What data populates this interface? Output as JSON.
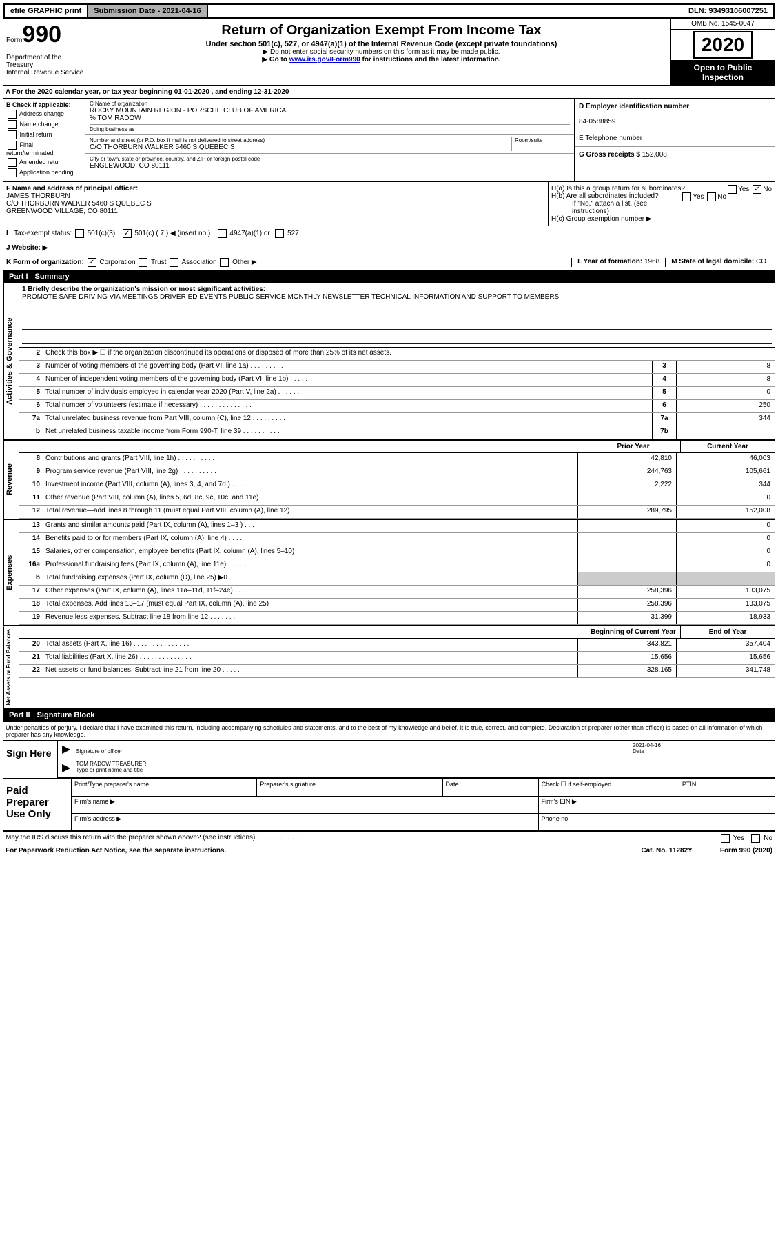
{
  "topbar": {
    "efile": "efile GRAPHIC print",
    "subdate_label": "Submission Date - 2021-04-16",
    "dln": "DLN: 93493106007251"
  },
  "header": {
    "form_word": "Form",
    "form_num": "990",
    "dept": "Department of the Treasury\nInternal Revenue Service",
    "title": "Return of Organization Exempt From Income Tax",
    "sub": "Under section 501(c), 527, or 4947(a)(1) of the Internal Revenue Code (except private foundations)",
    "note1": "▶ Do not enter social security numbers on this form as it may be made public.",
    "note2_pre": "▶ Go to ",
    "note2_link": "www.irs.gov/Form990",
    "note2_post": " for instructions and the latest information.",
    "omb": "OMB No. 1545-0047",
    "year": "2020",
    "public1": "Open to Public",
    "public2": "Inspection"
  },
  "line_a": "A For the 2020 calendar year, or tax year beginning 01-01-2020    , and ending 12-31-2020",
  "box_b": {
    "title": "B Check if applicable:",
    "items": [
      "Address change",
      "Name change",
      "Initial return",
      "Final return/terminated",
      "Amended return",
      "Application pending"
    ]
  },
  "box_c": {
    "name_lbl": "C Name of organization",
    "name": "ROCKY MOUNTAIN REGION - PORSCHE CLUB OF AMERICA",
    "care_of": "% TOM RADOW",
    "dba_lbl": "Doing business as",
    "addr_lbl": "Number and street (or P.O. box if mail is not delivered to street address)",
    "room_lbl": "Room/suite",
    "addr": "C/O THORBURN WALKER 5460 S QUEBEC S",
    "city_lbl": "City or town, state or province, country, and ZIP or foreign postal code",
    "city": "ENGLEWOOD, CO  80111"
  },
  "box_d": {
    "lbl": "D Employer identification number",
    "val": "84-0588859"
  },
  "box_e": {
    "lbl": "E Telephone number"
  },
  "box_g": {
    "lbl": "G Gross receipts $",
    "val": "152,008"
  },
  "box_f": {
    "lbl": "F Name and address of principal officer:",
    "name": "JAMES THORBURN",
    "addr1": "C/O THORBURN WALKER 5460 S QUEBEC S",
    "addr2": "GREENWOOD VILLAGE, CO  80111"
  },
  "box_h": {
    "a_lbl": "H(a)  Is this a group return for subordinates?",
    "a_yes": "Yes",
    "a_no": "No",
    "b_lbl": "H(b)  Are all subordinates included?",
    "b_yes": "Yes",
    "b_no": "No",
    "b_note": "If \"No,\" attach a list. (see instructions)",
    "c_lbl": "H(c)  Group exemption number ▶"
  },
  "tax_status": {
    "lbl": "Tax-exempt status:",
    "c3": "501(c)(3)",
    "c7": "501(c) ( 7 ) ◀ (insert no.)",
    "a1": "4947(a)(1) or",
    "s527": "527"
  },
  "website": {
    "lbl": "J   Website: ▶"
  },
  "kform": {
    "lbl": "K Form of organization:",
    "corp": "Corporation",
    "trust": "Trust",
    "assoc": "Association",
    "other": "Other ▶",
    "l_lbl": "L Year of formation:",
    "l_val": "1968",
    "m_lbl": "M State of legal domicile:",
    "m_val": "CO"
  },
  "part1": {
    "num": "Part I",
    "title": "Summary"
  },
  "governance": {
    "label": "Activities & Governance",
    "q1_lbl": "1  Briefly describe the organization's mission or most significant activities:",
    "q1_text": "PROMOTE SAFE DRIVING VIA MEETINGS DRIVER ED EVENTS PUBLIC SERVICE MONTHLY NEWSLETTER TECHNICAL INFORMATION AND SUPPORT TO MEMBERS",
    "q2": "Check this box ▶ ☐  if the organization discontinued its operations or disposed of more than 25% of its net assets.",
    "rows": [
      {
        "n": "3",
        "d": "Number of voting members of the governing body (Part VI, line 1a)  .   .   .   .   .   .   .   .   .",
        "bn": "3",
        "v": "8"
      },
      {
        "n": "4",
        "d": "Number of independent voting members of the governing body (Part VI, line 1b)   .   .   .   .   .",
        "bn": "4",
        "v": "8"
      },
      {
        "n": "5",
        "d": "Total number of individuals employed in calendar year 2020 (Part V, line 2a)   .   .   .   .   .   .",
        "bn": "5",
        "v": "0"
      },
      {
        "n": "6",
        "d": "Total number of volunteers (estimate if necessary)   .   .   .   .   .   .   .   .   .   .   .   .   .   .",
        "bn": "6",
        "v": "250"
      },
      {
        "n": "7a",
        "d": "Total unrelated business revenue from Part VIII, column (C), line 12   .   .   .   .   .   .   .   .   .",
        "bn": "7a",
        "v": "344"
      },
      {
        "n": "b",
        "d": "Net unrelated business taxable income from Form 990-T, line 39   .   .   .   .   .   .   .   .   .   .",
        "bn": "7b",
        "v": ""
      }
    ]
  },
  "revenue": {
    "label": "Revenue",
    "prior_hdr": "Prior Year",
    "curr_hdr": "Current Year",
    "rows": [
      {
        "n": "8",
        "d": "Contributions and grants (Part VIII, line 1h)   .   .   .   .   .   .   .   .   .   .",
        "p": "42,810",
        "c": "46,003"
      },
      {
        "n": "9",
        "d": "Program service revenue (Part VIII, line 2g)   .   .   .   .   .   .   .   .   .   .",
        "p": "244,763",
        "c": "105,661"
      },
      {
        "n": "10",
        "d": "Investment income (Part VIII, column (A), lines 3, 4, and 7d )   .   .   .   .",
        "p": "2,222",
        "c": "344"
      },
      {
        "n": "11",
        "d": "Other revenue (Part VIII, column (A), lines 5, 6d, 8c, 9c, 10c, and 11e)",
        "p": "",
        "c": "0"
      },
      {
        "n": "12",
        "d": "Total revenue—add lines 8 through 11 (must equal Part VIII, column (A), line 12)",
        "p": "289,795",
        "c": "152,008"
      }
    ]
  },
  "expenses": {
    "label": "Expenses",
    "rows": [
      {
        "n": "13",
        "d": "Grants and similar amounts paid (Part IX, column (A), lines 1–3 )   .   .   .",
        "p": "",
        "c": "0"
      },
      {
        "n": "14",
        "d": "Benefits paid to or for members (Part IX, column (A), line 4)   .   .   .   .",
        "p": "",
        "c": "0"
      },
      {
        "n": "15",
        "d": "Salaries, other compensation, employee benefits (Part IX, column (A), lines 5–10)",
        "p": "",
        "c": "0"
      },
      {
        "n": "16a",
        "d": "Professional fundraising fees (Part IX, column (A), line 11e)   .   .   .   .   .",
        "p": "",
        "c": "0"
      },
      {
        "n": "b",
        "d": "Total fundraising expenses (Part IX, column (D), line 25) ▶0",
        "p": "shaded",
        "c": "shaded"
      },
      {
        "n": "17",
        "d": "Other expenses (Part IX, column (A), lines 11a–11d, 11f–24e)   .   .   .   .",
        "p": "258,396",
        "c": "133,075"
      },
      {
        "n": "18",
        "d": "Total expenses. Add lines 13–17 (must equal Part IX, column (A), line 25)",
        "p": "258,396",
        "c": "133,075"
      },
      {
        "n": "19",
        "d": "Revenue less expenses. Subtract line 18 from line 12   .   .   .   .   .   .   .",
        "p": "31,399",
        "c": "18,933"
      }
    ]
  },
  "netassets": {
    "label": "Net Assets or Fund Balances",
    "prior_hdr": "Beginning of Current Year",
    "curr_hdr": "End of Year",
    "rows": [
      {
        "n": "20",
        "d": "Total assets (Part X, line 16)   .   .   .   .   .   .   .   .   .   .   .   .   .   .   .",
        "p": "343,821",
        "c": "357,404"
      },
      {
        "n": "21",
        "d": "Total liabilities (Part X, line 26)   .   .   .   .   .   .   .   .   .   .   .   .   .   .",
        "p": "15,656",
        "c": "15,656"
      },
      {
        "n": "22",
        "d": "Net assets or fund balances. Subtract line 21 from line 20   .   .   .   .   .",
        "p": "328,165",
        "c": "341,748"
      }
    ]
  },
  "part2": {
    "num": "Part II",
    "title": "Signature Block"
  },
  "sig": {
    "decl": "Under penalties of perjury, I declare that I have examined this return, including accompanying schedules and statements, and to the best of my knowledge and belief, it is true, correct, and complete. Declaration of preparer (other than officer) is based on all information of which preparer has any knowledge.",
    "sign_here": "Sign Here",
    "sig_officer_lbl": "Signature of officer",
    "date_lbl": "Date",
    "date_val": "2021-04-16",
    "name": "TOM RADOW  TREASURER",
    "name_lbl": "Type or print name and title"
  },
  "prep": {
    "title": "Paid Preparer Use Only",
    "print_name": "Print/Type preparer's name",
    "prep_sig": "Preparer's signature",
    "date": "Date",
    "check_self": "Check ☐ if self-employed",
    "ptin": "PTIN",
    "firm_name": "Firm's name  ▶",
    "firm_ein": "Firm's EIN ▶",
    "firm_addr": "Firm's address ▶",
    "phone": "Phone no."
  },
  "footer": {
    "discuss": "May the IRS discuss this return with the preparer shown above? (see instructions)   .   .   .   .   .   .   .   .   .   .   .   .",
    "yes": "Yes",
    "no": "No",
    "pra": "For Paperwork Reduction Act Notice, see the separate instructions.",
    "cat": "Cat. No. 11282Y",
    "form": "Form 990 (2020)"
  }
}
